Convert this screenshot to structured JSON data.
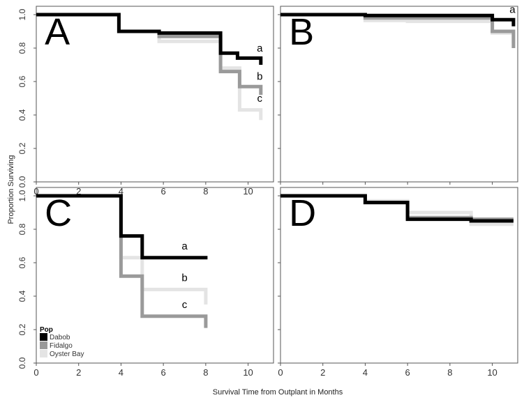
{
  "figure": {
    "ylabel": "Proportion Surviving",
    "xlabel": "Survival Time from Outplant in Months"
  },
  "legend": {
    "title": "Pop",
    "entries": [
      "Dabob",
      "Fidalgo",
      "Oyster Bay"
    ]
  },
  "colors": {
    "Dabob": "#000000",
    "Fidalgo": "#9a9a9a",
    "Oyster Bay": "#e4e4e4"
  },
  "chart_data": [
    {
      "type": "line",
      "panel": "A",
      "xlim": [
        0,
        11.2
      ],
      "ylim": [
        0,
        1.05
      ],
      "x_ticks": [
        "0",
        "2",
        "4",
        "6",
        "8",
        "10"
      ],
      "y_ticks": [
        "0.0",
        "0.2",
        "0.4",
        "0.6",
        "0.8",
        "1.0"
      ],
      "step": true,
      "series": [
        {
          "name": "Dabob",
          "points": [
            [
              0,
              1.0
            ],
            [
              3.9,
              1.0
            ],
            [
              3.9,
              0.9
            ],
            [
              5.8,
              0.9
            ],
            [
              5.8,
              0.89
            ],
            [
              8.7,
              0.89
            ],
            [
              8.7,
              0.77
            ],
            [
              9.5,
              0.77
            ],
            [
              9.5,
              0.74
            ],
            [
              10.6,
              0.74
            ],
            [
              10.6,
              0.7
            ]
          ]
        },
        {
          "name": "Fidalgo",
          "points": [
            [
              0,
              1.0
            ],
            [
              3.9,
              1.0
            ],
            [
              3.9,
              0.9
            ],
            [
              5.8,
              0.9
            ],
            [
              5.8,
              0.87
            ],
            [
              8.7,
              0.87
            ],
            [
              8.7,
              0.66
            ],
            [
              9.6,
              0.66
            ],
            [
              9.6,
              0.57
            ],
            [
              10.6,
              0.57
            ],
            [
              10.6,
              0.52
            ]
          ]
        },
        {
          "name": "Oyster Bay",
          "points": [
            [
              0,
              1.0
            ],
            [
              3.9,
              1.0
            ],
            [
              3.9,
              0.9
            ],
            [
              5.8,
              0.9
            ],
            [
              5.8,
              0.84
            ],
            [
              8.7,
              0.84
            ],
            [
              8.7,
              0.68
            ],
            [
              9.6,
              0.68
            ],
            [
              9.6,
              0.43
            ],
            [
              10.6,
              0.43
            ],
            [
              10.6,
              0.37
            ]
          ]
        }
      ],
      "annotations": [
        {
          "text": "A",
          "x": 0.4,
          "y": 0.82,
          "size": "large"
        },
        {
          "text": "a",
          "x": 10.55,
          "y": 0.78
        },
        {
          "text": "b",
          "x": 10.55,
          "y": 0.61
        },
        {
          "text": "c",
          "x": 10.55,
          "y": 0.48
        }
      ]
    },
    {
      "type": "line",
      "panel": "B",
      "xlim": [
        0,
        11.2
      ],
      "ylim": [
        0,
        1.05
      ],
      "x_ticks": [],
      "y_ticks": [],
      "step": true,
      "series": [
        {
          "name": "Dabob",
          "points": [
            [
              0,
              1.0
            ],
            [
              4.0,
              1.0
            ],
            [
              4.0,
              0.995
            ],
            [
              10.0,
              0.995
            ],
            [
              10.0,
              0.97
            ],
            [
              11.0,
              0.97
            ],
            [
              11.0,
              0.93
            ]
          ]
        },
        {
          "name": "Fidalgo",
          "points": [
            [
              0,
              1.0
            ],
            [
              4.0,
              1.0
            ],
            [
              4.0,
              0.98
            ],
            [
              10.0,
              0.98
            ],
            [
              10.0,
              0.9
            ],
            [
              11.0,
              0.9
            ],
            [
              11.0,
              0.8
            ]
          ]
        },
        {
          "name": "Oyster Bay",
          "points": [
            [
              0,
              1.0
            ],
            [
              4.0,
              1.0
            ],
            [
              4.0,
              0.965
            ],
            [
              6.0,
              0.965
            ],
            [
              6.0,
              0.96
            ],
            [
              10.0,
              0.96
            ],
            [
              10.0,
              0.89
            ],
            [
              11.0,
              0.89
            ],
            [
              11.0,
              0.83
            ]
          ]
        }
      ],
      "annotations": [
        {
          "text": "B",
          "x": 0.4,
          "y": 0.82,
          "size": "large"
        },
        {
          "text": "a",
          "x": 10.95,
          "y": 1.01
        }
      ]
    },
    {
      "type": "line",
      "panel": "C",
      "xlim": [
        0,
        11.2
      ],
      "ylim": [
        0,
        1.05
      ],
      "x_ticks": [
        "0",
        "2",
        "4",
        "6",
        "8",
        "10"
      ],
      "y_ticks": [
        "0.0",
        "0.2",
        "0.4",
        "0.6",
        "0.8",
        "1.0"
      ],
      "step": true,
      "series": [
        {
          "name": "Dabob",
          "points": [
            [
              0,
              1.0
            ],
            [
              4.0,
              1.0
            ],
            [
              4.0,
              0.76
            ],
            [
              5.0,
              0.76
            ],
            [
              5.0,
              0.63
            ],
            [
              8.0,
              0.63
            ],
            [
              8.0,
              0.62
            ]
          ]
        },
        {
          "name": "Fidalgo",
          "points": [
            [
              0,
              1.0
            ],
            [
              4.0,
              1.0
            ],
            [
              4.0,
              0.52
            ],
            [
              5.0,
              0.52
            ],
            [
              5.0,
              0.28
            ],
            [
              8.0,
              0.28
            ],
            [
              8.0,
              0.21
            ]
          ]
        },
        {
          "name": "Oyster Bay",
          "points": [
            [
              0,
              1.0
            ],
            [
              4.0,
              1.0
            ],
            [
              4.0,
              0.63
            ],
            [
              5.0,
              0.63
            ],
            [
              5.0,
              0.44
            ],
            [
              8.0,
              0.44
            ],
            [
              8.0,
              0.35
            ]
          ]
        }
      ],
      "annotations": [
        {
          "text": "C",
          "x": 0.4,
          "y": 0.82,
          "size": "large"
        },
        {
          "text": "a",
          "x": 7.0,
          "y": 0.68
        },
        {
          "text": "b",
          "x": 7.0,
          "y": 0.49
        },
        {
          "text": "c",
          "x": 7.0,
          "y": 0.33
        }
      ]
    },
    {
      "type": "line",
      "panel": "D",
      "xlim": [
        0,
        11.2
      ],
      "ylim": [
        0,
        1.05
      ],
      "x_ticks": [
        "0",
        "2",
        "4",
        "6",
        "8",
        "10"
      ],
      "y_ticks": [],
      "step": true,
      "series": [
        {
          "name": "Dabob",
          "points": [
            [
              0,
              1.0
            ],
            [
              4.0,
              1.0
            ],
            [
              4.0,
              0.96
            ],
            [
              6.0,
              0.96
            ],
            [
              6.0,
              0.86
            ],
            [
              9.0,
              0.86
            ],
            [
              9.0,
              0.85
            ],
            [
              11.0,
              0.85
            ]
          ]
        },
        {
          "name": "Fidalgo",
          "points": [
            [
              0,
              1.0
            ],
            [
              4.0,
              1.0
            ],
            [
              4.0,
              0.96
            ],
            [
              6.0,
              0.96
            ],
            [
              6.0,
              0.87
            ],
            [
              9.0,
              0.87
            ],
            [
              9.0,
              0.86
            ],
            [
              11.0,
              0.86
            ]
          ]
        },
        {
          "name": "Oyster Bay",
          "points": [
            [
              0,
              1.0
            ],
            [
              4.0,
              1.0
            ],
            [
              4.0,
              0.97
            ],
            [
              6.0,
              0.97
            ],
            [
              6.0,
              0.9
            ],
            [
              9.0,
              0.9
            ],
            [
              9.0,
              0.83
            ],
            [
              11.0,
              0.83
            ]
          ]
        }
      ],
      "annotations": [
        {
          "text": "D",
          "x": 0.4,
          "y": 0.82,
          "size": "large"
        }
      ]
    }
  ]
}
